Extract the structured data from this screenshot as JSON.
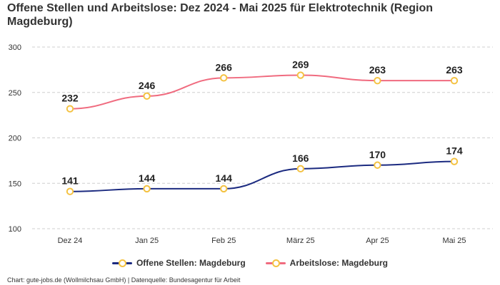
{
  "header": {
    "title": "Offene Stellen und Arbeitslose: Dez 2024 - Mai 2025 für Elektrotechnik (Region Magdeburg)"
  },
  "chart_data": {
    "type": "line",
    "title": "Offene Stellen und Arbeitslose: Dez 2024 - Mai 2025 für Elektrotechnik (Region Magdeburg)",
    "categories": [
      "Dez 24",
      "Jan 25",
      "Feb 25",
      "März 25",
      "Apr 25",
      "Mai 25"
    ],
    "series": [
      {
        "name": "Offene Stellen: Magdeburg",
        "values": [
          141,
          144,
          144,
          166,
          170,
          174
        ],
        "color": "#1b2a80"
      },
      {
        "name": "Arbeitslose: Magdeburg",
        "values": [
          232,
          246,
          266,
          269,
          263,
          263
        ],
        "color": "#f06b7f"
      }
    ],
    "ylim": [
      100,
      300
    ],
    "yticks": [
      100,
      150,
      200,
      250,
      300
    ],
    "grid": true,
    "legend_position": "bottom",
    "marker_color": "#f4c242"
  },
  "legend": {
    "items": [
      {
        "label": "Offene Stellen: Magdeburg",
        "color": "#1b2a80"
      },
      {
        "label": "Arbeitslose: Magdeburg",
        "color": "#f06b7f"
      }
    ]
  },
  "footer": {
    "source": "Chart: gute-jobs.de (Wollmilchsau GmbH) | Datenquelle: Bundesagentur für Arbeit"
  }
}
